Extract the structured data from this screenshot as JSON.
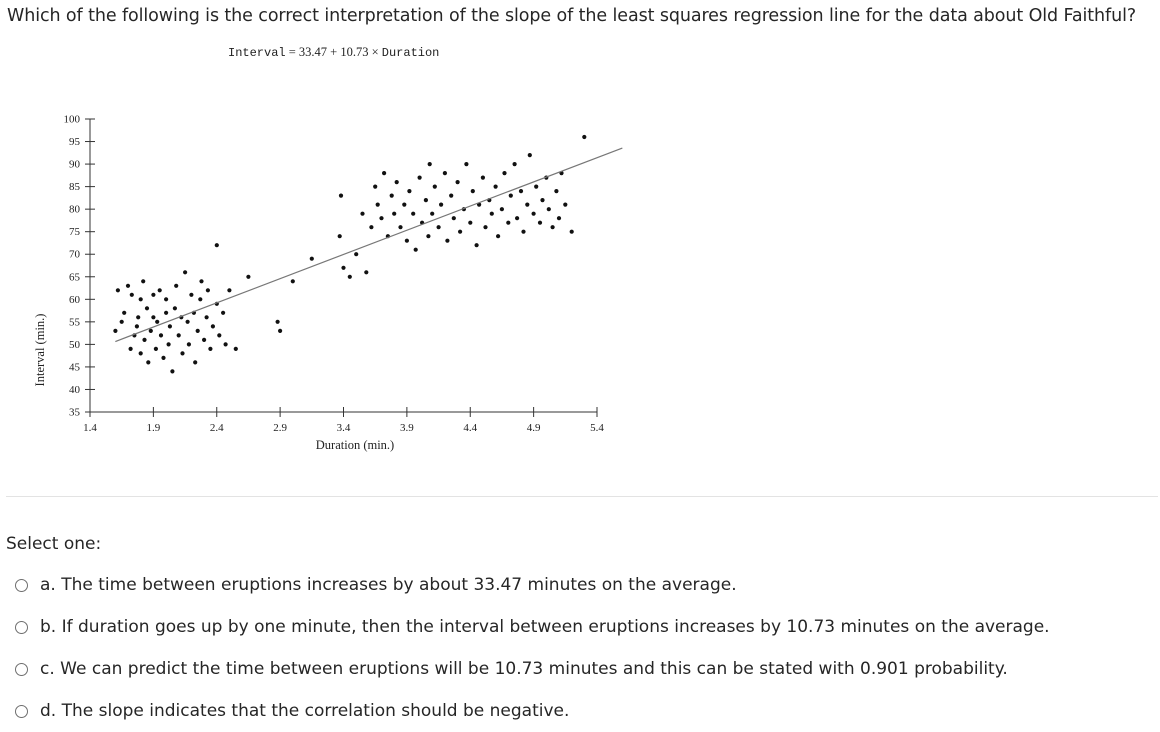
{
  "question": "Which of the following is the correct interpretation of the slope of the least squares regression line for the data about Old Faithful?",
  "equation": {
    "lhs": "Interval",
    "rhs": "= 33.47 + 10.73 × ",
    "var": "Duration"
  },
  "chart_data": {
    "type": "scatter",
    "title": "",
    "xlabel": "Duration (min.)",
    "ylabel": "Interval (min.)",
    "xlim": [
      1.4,
      5.4
    ],
    "ylim": [
      35,
      100
    ],
    "x_ticks": [
      1.4,
      1.9,
      2.4,
      2.9,
      3.4,
      3.9,
      4.4,
      4.9,
      5.4
    ],
    "x_tick_labels": [
      "1.4",
      "1.9",
      "2.4",
      "2.9",
      "3.4",
      "3.9",
      "4.4",
      "4.9",
      "5.4"
    ],
    "y_ticks": [
      35,
      40,
      45,
      50,
      55,
      60,
      65,
      70,
      75,
      80,
      85,
      90,
      95,
      100
    ],
    "y_tick_labels": [
      "35",
      "40",
      "45",
      "50",
      "55",
      "60",
      "65",
      "70",
      "75",
      "80",
      "85",
      "90",
      "95",
      "100"
    ],
    "regression": {
      "intercept": 33.47,
      "slope": 10.73,
      "x_range": [
        1.6,
        5.6
      ]
    },
    "points": [
      [
        1.6,
        53
      ],
      [
        1.62,
        62
      ],
      [
        1.65,
        55
      ],
      [
        1.67,
        57
      ],
      [
        1.7,
        63
      ],
      [
        1.72,
        49
      ],
      [
        1.73,
        61
      ],
      [
        1.75,
        52
      ],
      [
        1.77,
        54
      ],
      [
        1.78,
        56
      ],
      [
        1.8,
        48
      ],
      [
        1.8,
        60
      ],
      [
        1.82,
        64
      ],
      [
        1.83,
        51
      ],
      [
        1.85,
        58
      ],
      [
        1.86,
        46
      ],
      [
        1.88,
        53
      ],
      [
        1.9,
        56
      ],
      [
        1.9,
        61
      ],
      [
        1.92,
        49
      ],
      [
        1.93,
        55
      ],
      [
        1.95,
        62
      ],
      [
        1.96,
        52
      ],
      [
        1.98,
        47
      ],
      [
        2.0,
        57
      ],
      [
        2.0,
        60
      ],
      [
        2.02,
        50
      ],
      [
        2.03,
        54
      ],
      [
        2.05,
        44
      ],
      [
        2.07,
        58
      ],
      [
        2.08,
        63
      ],
      [
        2.1,
        52
      ],
      [
        2.12,
        56
      ],
      [
        2.13,
        48
      ],
      [
        2.15,
        66
      ],
      [
        2.17,
        55
      ],
      [
        2.18,
        50
      ],
      [
        2.2,
        61
      ],
      [
        2.22,
        57
      ],
      [
        2.23,
        46
      ],
      [
        2.25,
        53
      ],
      [
        2.27,
        60
      ],
      [
        2.28,
        64
      ],
      [
        2.3,
        51
      ],
      [
        2.32,
        56
      ],
      [
        2.33,
        62
      ],
      [
        2.35,
        49
      ],
      [
        2.37,
        54
      ],
      [
        2.4,
        59
      ],
      [
        2.4,
        72
      ],
      [
        2.42,
        52
      ],
      [
        2.45,
        57
      ],
      [
        2.47,
        50
      ],
      [
        2.5,
        62
      ],
      [
        2.55,
        49
      ],
      [
        2.65,
        65
      ],
      [
        2.88,
        55
      ],
      [
        2.9,
        53
      ],
      [
        3.0,
        64
      ],
      [
        3.15,
        69
      ],
      [
        3.37,
        74
      ],
      [
        3.38,
        83
      ],
      [
        3.4,
        67
      ],
      [
        3.45,
        65
      ],
      [
        3.5,
        70
      ],
      [
        3.55,
        79
      ],
      [
        3.58,
        66
      ],
      [
        3.62,
        76
      ],
      [
        3.65,
        85
      ],
      [
        3.67,
        81
      ],
      [
        3.7,
        78
      ],
      [
        3.72,
        88
      ],
      [
        3.75,
        74
      ],
      [
        3.78,
        83
      ],
      [
        3.8,
        79
      ],
      [
        3.82,
        86
      ],
      [
        3.85,
        76
      ],
      [
        3.88,
        81
      ],
      [
        3.9,
        73
      ],
      [
        3.92,
        84
      ],
      [
        3.95,
        79
      ],
      [
        3.97,
        71
      ],
      [
        4.0,
        87
      ],
      [
        4.02,
        77
      ],
      [
        4.05,
        82
      ],
      [
        4.07,
        74
      ],
      [
        4.08,
        90
      ],
      [
        4.1,
        79
      ],
      [
        4.12,
        85
      ],
      [
        4.15,
        76
      ],
      [
        4.17,
        81
      ],
      [
        4.2,
        88
      ],
      [
        4.22,
        73
      ],
      [
        4.25,
        83
      ],
      [
        4.27,
        78
      ],
      [
        4.3,
        86
      ],
      [
        4.32,
        75
      ],
      [
        4.35,
        80
      ],
      [
        4.37,
        90
      ],
      [
        4.4,
        77
      ],
      [
        4.42,
        84
      ],
      [
        4.45,
        72
      ],
      [
        4.47,
        81
      ],
      [
        4.5,
        87
      ],
      [
        4.52,
        76
      ],
      [
        4.55,
        82
      ],
      [
        4.57,
        79
      ],
      [
        4.6,
        85
      ],
      [
        4.62,
        74
      ],
      [
        4.65,
        80
      ],
      [
        4.67,
        88
      ],
      [
        4.7,
        77
      ],
      [
        4.72,
        83
      ],
      [
        4.75,
        90
      ],
      [
        4.77,
        78
      ],
      [
        4.8,
        84
      ],
      [
        4.82,
        75
      ],
      [
        4.85,
        81
      ],
      [
        4.87,
        92
      ],
      [
        4.9,
        79
      ],
      [
        4.92,
        85
      ],
      [
        4.95,
        77
      ],
      [
        4.97,
        82
      ],
      [
        5.0,
        87
      ],
      [
        5.02,
        80
      ],
      [
        5.05,
        76
      ],
      [
        5.08,
        84
      ],
      [
        5.1,
        78
      ],
      [
        5.12,
        88
      ],
      [
        5.15,
        81
      ],
      [
        5.2,
        75
      ],
      [
        5.3,
        96
      ]
    ]
  },
  "select_label": "Select one:",
  "options": [
    {
      "letter": "a.",
      "text": "The time between eruptions increases by about 33.47 minutes on the average."
    },
    {
      "letter": "b.",
      "text": "If duration goes up by one minute, then the interval between eruptions increases by 10.73 minutes on the average."
    },
    {
      "letter": "c.",
      "text": "We can predict the time between eruptions will be 10.73 minutes and this can be stated with 0.901 probability."
    },
    {
      "letter": "d.",
      "text": "The slope indicates that the correlation should be negative."
    }
  ]
}
